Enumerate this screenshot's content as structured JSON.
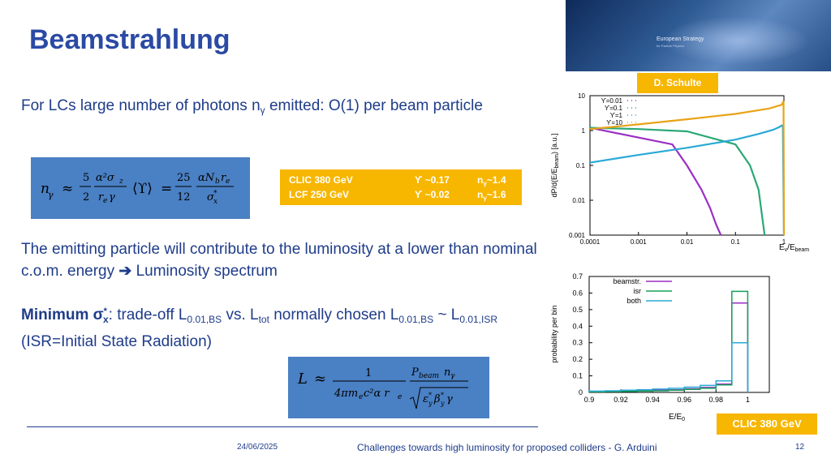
{
  "slide": {
    "title": "Beamstrahlung",
    "author_label": "D. Schulte",
    "banner_text": "European Strategy",
    "banner_subtext": "for Particle Physics",
    "p1": {
      "text": "For LCs large number of photons n",
      "sub": "γ",
      "text_after": " emitted: O(1) per beam particle"
    },
    "p2": {
      "text": "The emitting particle will contribute to the luminosity at a lower than nominal c.o.m. energy ",
      "text_after": " Luminosity spectrum"
    },
    "p3": {
      "bold": "Minimum σ",
      "bold_sup": "*",
      "bold_sub": "x",
      "text1": ": trade-off L",
      "sub1": "0.01,BS",
      "text2": " vs. L",
      "sub2": "tot",
      "text3": "  normally chosen L",
      "sub3": "0.01,BS",
      "text4": " ~ L",
      "sub4": "0.01,ISR",
      "text5": " (ISR=Initial State Radiation)"
    },
    "params": {
      "rows": [
        {
          "name": "CLIC 380 GeV",
          "ups": "ϒ ~0.17",
          "n": "n",
          "n_sub": "γ",
          "n_val": "~1.4"
        },
        {
          "name": "LCF 250 GeV",
          "ups": "ϒ  ~0.02",
          "n": "n",
          "n_sub": "γ",
          "n_val": "~1.6"
        }
      ]
    },
    "badge": "CLIC 380 GeV",
    "footer": {
      "date": "24/06/2025",
      "text": "Challenges towards high luminosity for proposed colliders - G. Arduini",
      "page": "12"
    }
  },
  "colors": {
    "accent_blue": "#1f3c8a",
    "title_blue": "#2a4aa4",
    "orange": "#f7b600",
    "formula_bg": "#4a80c4"
  },
  "chart_data": [
    {
      "type": "line",
      "log_x": true,
      "log_y": true,
      "xlim": [
        0.0001,
        1
      ],
      "ylim": [
        0.001,
        10
      ],
      "x_ticks": [
        "0.0001",
        "0.001",
        "0.01",
        "0.1",
        "1"
      ],
      "y_ticks": [
        "0.001",
        "0.01",
        "0.1",
        "1",
        "10"
      ],
      "ylabel": "dP/d(E/E",
      "ylabel_sub": "beam",
      "ylabel_end": ") [a.u.]",
      "xlabel": "E",
      "xlabel_sub": "/E",
      "xlabel_sub2": "beam",
      "legend_position": "top-left",
      "series": [
        {
          "name": "ϒ=0.01",
          "color": "#9b2fc4",
          "x": [
            0.0001,
            0.005,
            0.01,
            0.02,
            0.03,
            0.04,
            0.05
          ],
          "y": [
            1.2,
            0.4,
            0.1,
            0.02,
            0.006,
            0.002,
            0.001
          ]
        },
        {
          "name": "ϒ=0.1",
          "color": "#2aa876",
          "x": [
            0.0001,
            0.001,
            0.01,
            0.1,
            0.2,
            0.3,
            0.4
          ],
          "y": [
            1.2,
            1.1,
            0.95,
            0.4,
            0.1,
            0.02,
            0.001
          ]
        },
        {
          "name": "ϒ=1",
          "color": "#2aa9d6",
          "x": [
            0.0001,
            0.001,
            0.01,
            0.1,
            0.3,
            0.6,
            0.8,
            0.9,
            0.95,
            1.0
          ],
          "y": [
            0.12,
            0.2,
            0.32,
            0.55,
            0.8,
            1.05,
            1.25,
            1.4,
            1.3,
            0.001
          ]
        },
        {
          "name": "ϒ=10",
          "color": "#e8a317",
          "x": [
            0.0001,
            0.001,
            0.01,
            0.1,
            0.5,
            0.9,
            0.98,
            1.0
          ],
          "y": [
            1.1,
            1.5,
            2.1,
            3.0,
            4.3,
            5.5,
            7.0,
            0.001
          ]
        }
      ]
    },
    {
      "type": "bar",
      "xlim": [
        0.9,
        1.0
      ],
      "ylim": [
        0,
        0.7
      ],
      "x_ticks": [
        "0.9",
        "0.92",
        "0.94",
        "0.96",
        "0.98",
        "1"
      ],
      "y_ticks": [
        "0",
        "0.1",
        "0.2",
        "0.3",
        "0.4",
        "0.5",
        "0.6",
        "0.7"
      ],
      "ylabel": "probability per bin",
      "xlabel": "E/E",
      "xlabel_sub": "0",
      "legend_position": "top-left",
      "bins_x": [
        0.9,
        0.91,
        0.92,
        0.93,
        0.94,
        0.95,
        0.96,
        0.97,
        0.98,
        0.99
      ],
      "series": [
        {
          "name": "beamstr.",
          "color": "#9b2fc4",
          "values": [
            0.005,
            0.006,
            0.008,
            0.01,
            0.013,
            0.016,
            0.022,
            0.03,
            0.05,
            0.54
          ]
        },
        {
          "name": "isr",
          "color": "#16a05a",
          "values": [
            0.004,
            0.005,
            0.006,
            0.008,
            0.01,
            0.013,
            0.018,
            0.025,
            0.045,
            0.61
          ]
        },
        {
          "name": "both",
          "color": "#2aa9d6",
          "values": [
            0.008,
            0.01,
            0.013,
            0.016,
            0.02,
            0.025,
            0.032,
            0.042,
            0.07,
            0.3
          ]
        }
      ]
    }
  ]
}
